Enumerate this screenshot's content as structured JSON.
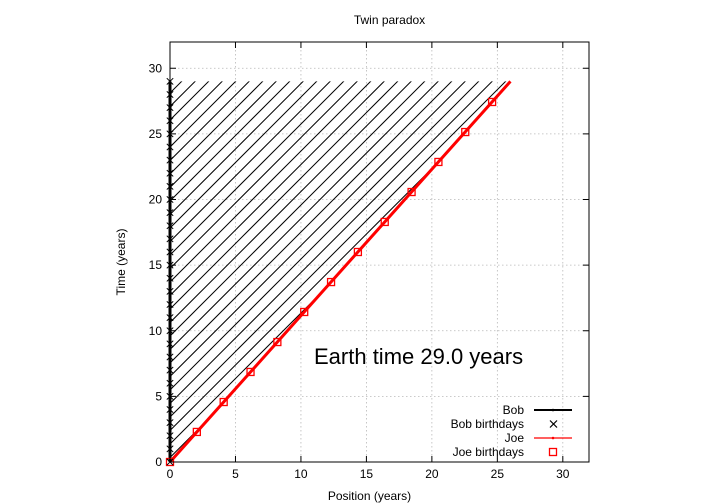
{
  "chart_data": {
    "type": "line",
    "title": "Twin paradox",
    "xlabel": "Position (years)",
    "ylabel": "Time (years)",
    "xlim": [
      0,
      32
    ],
    "ylim": [
      0,
      32
    ],
    "xticks": [
      0,
      5,
      10,
      15,
      20,
      25,
      30
    ],
    "yticks": [
      0,
      5,
      10,
      15,
      20,
      25,
      30
    ],
    "grid": true,
    "legend_position": "bottom-right",
    "annotation": "Earth time 29.0 years",
    "hatch_region": {
      "description": "",
      "x": [
        0,
        0,
        26
      ],
      "y": [
        0,
        29,
        29
      ]
    },
    "series": [
      {
        "name": "Bob",
        "kind": "line",
        "color": "#000000",
        "x": [
          0,
          0
        ],
        "y": [
          0,
          29
        ]
      },
      {
        "name": "Bob birthdays",
        "kind": "markers",
        "marker": "x",
        "color": "#000000",
        "x": [
          0,
          0,
          0,
          0,
          0,
          0,
          0,
          0,
          0,
          0,
          0,
          0,
          0,
          0,
          0,
          0,
          0,
          0,
          0,
          0,
          0,
          0,
          0,
          0,
          0,
          0,
          0,
          0,
          0,
          0
        ],
        "y": [
          0,
          1,
          2,
          3,
          4,
          5,
          6,
          7,
          8,
          9,
          10,
          11,
          12,
          13,
          14,
          15,
          16,
          17,
          18,
          19,
          20,
          21,
          22,
          23,
          24,
          25,
          26,
          27,
          28,
          29
        ]
      },
      {
        "name": "Joe",
        "kind": "line",
        "color": "#ff0000",
        "x": [
          0,
          26
        ],
        "y": [
          0,
          29
        ]
      },
      {
        "name": "Joe birthdays",
        "kind": "markers",
        "marker": "square",
        "color": "#ff0000",
        "x": [
          0,
          2.05,
          4.1,
          6.15,
          8.2,
          10.25,
          12.3,
          14.35,
          16.4,
          18.45,
          20.5,
          22.55,
          24.6
        ],
        "y": [
          0,
          2.29,
          4.57,
          6.86,
          9.14,
          11.43,
          13.71,
          16.0,
          18.29,
          20.57,
          22.86,
          25.14,
          27.43
        ]
      }
    ]
  }
}
